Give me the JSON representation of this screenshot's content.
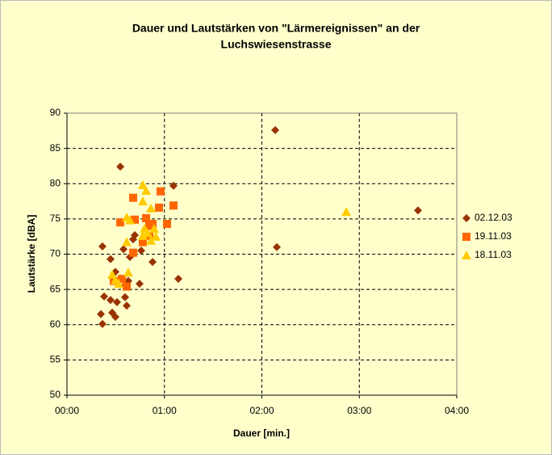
{
  "chart_data": {
    "type": "scatter",
    "title": [
      "Dauer und Lautstärken von \"Lärmereignissen\" an der",
      "Luchswiesenstrasse"
    ],
    "x_label": "Dauer [min.]",
    "y_label": "Lautstärke [dBA]",
    "xlim": [
      0,
      4
    ],
    "xticks": [
      {
        "value": 0,
        "label": "00:00"
      },
      {
        "value": 1,
        "label": "01:00"
      },
      {
        "value": 2,
        "label": "02:00"
      },
      {
        "value": 3,
        "label": "03:00"
      },
      {
        "value": 4,
        "label": "04:00"
      }
    ],
    "ylim": [
      50,
      90
    ],
    "yticks": [
      50,
      55,
      60,
      65,
      70,
      75,
      80,
      85,
      90
    ],
    "grid": true,
    "legend": "right",
    "series": [
      {
        "name": "02.12.03",
        "color": "#993300",
        "marker": "diamond",
        "x": [
          0.364,
          0.447,
          0.381,
          0.348,
          0.364,
          0.447,
          0.513,
          0.464,
          0.497,
          0.497,
          0.596,
          0.613,
          0.596,
          0.629,
          0.646,
          0.58,
          0.679,
          0.696,
          0.745,
          0.762,
          0.878,
          1.093,
          1.143,
          0.547,
          2.137,
          2.153,
          3.602
        ],
        "values": [
          71.1,
          69.3,
          64.0,
          61.5,
          60.1,
          63.5,
          63.2,
          61.7,
          61.1,
          67.5,
          65.6,
          62.7,
          63.9,
          66.2,
          69.6,
          70.7,
          72.1,
          72.7,
          65.8,
          70.5,
          68.9,
          79.7,
          66.5,
          82.4,
          87.6,
          71.0,
          76.2
        ]
      },
      {
        "name": "19.11.03",
        "color": "#ff6600",
        "marker": "square",
        "x": [
          0.547,
          0.679,
          0.696,
          0.679,
          0.48,
          0.563,
          0.613,
          0.812,
          0.845,
          0.845,
          0.878,
          0.944,
          0.96,
          1.027,
          1.093,
          0.778
        ],
        "values": [
          74.5,
          78.0,
          74.9,
          70.2,
          66.2,
          66.5,
          65.4,
          75.1,
          72.6,
          74.0,
          74.3,
          76.6,
          78.9,
          74.3,
          76.9,
          71.7
        ]
      },
      {
        "name": "18.11.03",
        "color": "#ffcc00",
        "marker": "triangle",
        "x": [
          0.778,
          0.812,
          0.778,
          0.861,
          0.646,
          0.613,
          0.795,
          0.778,
          0.828,
          0.861,
          0.894,
          0.911,
          0.613,
          0.629,
          0.497,
          0.53,
          0.464,
          2.866
        ],
        "values": [
          79.8,
          79.0,
          77.5,
          76.5,
          74.8,
          75.2,
          73.6,
          72.6,
          73.0,
          71.9,
          73.6,
          72.5,
          71.7,
          67.4,
          66.3,
          65.8,
          67.1,
          76.0
        ]
      }
    ]
  }
}
